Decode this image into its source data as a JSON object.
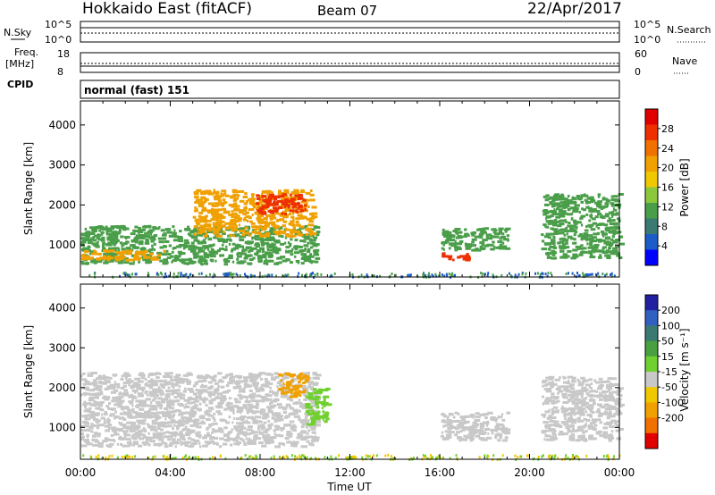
{
  "header": {
    "station": "Hokkaido East (fitACF)",
    "beam": "Beam 07",
    "date": "22/Apr/2017"
  },
  "top_panels": {
    "nsky_label": "N.Sky",
    "nsky_ticks": [
      "10^5",
      "10^0"
    ],
    "nsearch_label": "N.Search",
    "freq_label_1": "Freq.",
    "freq_label_2": "[MHz]",
    "freq_ticks": [
      "18",
      "8"
    ],
    "nave_label": "Nave",
    "nave_ticks": [
      "60",
      "0"
    ],
    "cpid_label": "CPID",
    "cpid_value": "normal (fast) 151"
  },
  "chart_data": [
    {
      "type": "heatmap",
      "panel": "power",
      "ylabel": "Slant Range [km]",
      "xlabel": "",
      "x_ticks": [
        "00:00",
        "04:00",
        "08:00",
        "12:00",
        "16:00",
        "20:00",
        "00:00"
      ],
      "y_ticks": [
        1000,
        2000,
        3000,
        4000
      ],
      "ylim": [
        200,
        4600
      ],
      "xlim_hours": [
        0,
        24
      ],
      "colorbar": {
        "label": "Power [dB]",
        "ticks": [
          4,
          8,
          12,
          16,
          20,
          24,
          28
        ],
        "range": [
          0,
          32
        ],
        "colors": [
          "#0000ff",
          "#1c5cc8",
          "#3a7a72",
          "#4a9e4a",
          "#8cc83c",
          "#f0c800",
          "#f0a000",
          "#f07000",
          "#ee3000",
          "#e00000"
        ]
      },
      "regions": [
        {
          "t0": 0.0,
          "t1": 10.5,
          "r0": 550,
          "r1": 1500,
          "level": 12
        },
        {
          "t0": 0.0,
          "t1": 3.8,
          "r0": 650,
          "r1": 900,
          "level": 20
        },
        {
          "t0": 5.0,
          "t1": 10.3,
          "r0": 1250,
          "r1": 2400,
          "level": 20
        },
        {
          "t0": 7.8,
          "t1": 10.0,
          "r0": 1800,
          "r1": 2300,
          "level": 27
        },
        {
          "t0": 16.0,
          "t1": 17.3,
          "r0": 650,
          "r1": 820,
          "level": 27
        },
        {
          "t0": 16.0,
          "t1": 19.0,
          "r0": 900,
          "r1": 1450,
          "level": 12
        },
        {
          "t0": 20.5,
          "t1": 24.0,
          "r0": 700,
          "r1": 2300,
          "level": 12
        }
      ]
    },
    {
      "type": "heatmap",
      "panel": "velocity",
      "ylabel": "Slant Range [km]",
      "xlabel": "Time UT",
      "x_ticks": [
        "00:00",
        "04:00",
        "08:00",
        "12:00",
        "16:00",
        "20:00",
        "00:00"
      ],
      "y_ticks": [
        1000,
        2000,
        3000,
        4000
      ],
      "ylim": [
        200,
        4600
      ],
      "xlim_hours": [
        0,
        24
      ],
      "colorbar": {
        "label": "Velocity [m s⁻¹]",
        "ticks": [
          "200",
          "100",
          "50",
          "15",
          "-15",
          "-50",
          "-100",
          "-200"
        ],
        "colors": [
          "#2020a0",
          "#3060c0",
          "#3a7a72",
          "#4aa040",
          "#70d030",
          "#c8c8c8",
          "#f0c800",
          "#f0a000",
          "#f07000",
          "#e00000"
        ]
      },
      "regions": [
        {
          "t0": 0.0,
          "t1": 10.5,
          "r0": 550,
          "r1": 2400,
          "level": "-15..15"
        },
        {
          "t0": 8.8,
          "t1": 10.0,
          "r0": 1800,
          "r1": 2400,
          "level": "-50"
        },
        {
          "t0": 10.0,
          "t1": 11.0,
          "r0": 1100,
          "r1": 2000,
          "level": "50"
        },
        {
          "t0": 16.0,
          "t1": 19.0,
          "r0": 700,
          "r1": 1400,
          "level": "-15..15"
        },
        {
          "t0": 20.5,
          "t1": 24.0,
          "r0": 700,
          "r1": 2300,
          "level": "-15..15"
        }
      ]
    }
  ]
}
